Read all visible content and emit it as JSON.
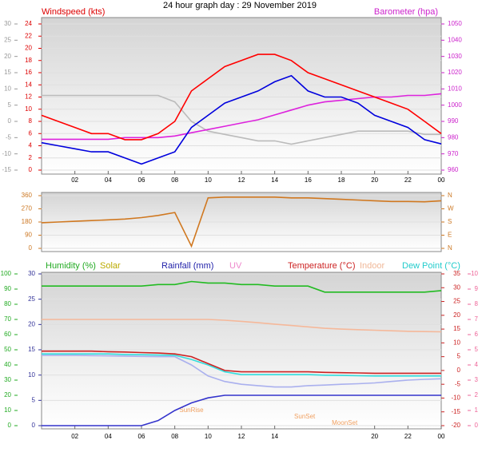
{
  "chart_data": [
    {
      "type": "line",
      "title": "24 hour graph day : 29 November 2019",
      "ylabel": "Windspeed (kts)",
      "y2label": "Barometer (hpa)",
      "x": [
        0,
        1,
        2,
        3,
        4,
        5,
        6,
        7,
        8,
        9,
        10,
        11,
        12,
        13,
        14,
        15,
        16,
        17,
        18,
        19,
        20,
        21,
        22,
        23,
        24
      ],
      "xlim": [
        0,
        24
      ],
      "xticks": [
        {
          "value": 2,
          "label": "02"
        },
        {
          "value": 4,
          "label": "04"
        },
        {
          "value": 6,
          "label": "06"
        },
        {
          "value": 8,
          "label": "08"
        },
        10,
        12,
        14,
        16,
        18,
        20,
        22,
        {
          "value": 24,
          "label": "00"
        }
      ],
      "ylim": [
        0,
        24
      ],
      "yticks": [
        0,
        2,
        4,
        6,
        8,
        10,
        12,
        14,
        16,
        18,
        20,
        22,
        24
      ],
      "ycolor": "#dd0000",
      "y2lim": [
        960,
        1050
      ],
      "y2ticks": [
        960,
        970,
        980,
        990,
        1000,
        1010,
        1020,
        1030,
        1040,
        1050
      ],
      "y2color": "#cc22cc",
      "y3lim": [
        -15,
        30
      ],
      "y3ticks": [
        -15,
        -10,
        -5,
        0,
        5,
        10,
        15,
        20,
        25,
        30
      ],
      "y3color": "#999999",
      "grid": true,
      "series": [
        {
          "color": "#bbbbbb",
          "axis": "y3",
          "values": [
            8,
            8,
            8,
            8,
            8,
            8,
            8,
            8,
            6,
            0,
            -3,
            -4,
            -5,
            -6,
            -6,
            -7,
            -6,
            -5,
            -4,
            -3,
            -3,
            -3,
            -3,
            -4,
            -4
          ]
        },
        {
          "color": "#dd22dd",
          "axis": "y2",
          "values": [
            979,
            979,
            979,
            979,
            979,
            980,
            980,
            980,
            981,
            983,
            985,
            987,
            989,
            991,
            994,
            997,
            1000,
            1002,
            1003,
            1004,
            1005,
            1005,
            1006,
            1006,
            1007
          ]
        },
        {
          "color": "#ff0000",
          "axis": "y",
          "values": [
            9,
            8,
            7,
            6,
            6,
            5,
            5,
            6,
            8,
            13,
            15,
            17,
            18,
            19,
            19,
            18,
            16,
            15,
            14,
            13,
            12,
            11,
            10,
            8,
            6
          ]
        },
        {
          "color": "#0000dd",
          "axis": "y",
          "values": [
            4.5,
            4,
            3.5,
            3,
            3,
            2,
            1,
            2,
            3,
            7,
            9,
            11,
            12,
            13,
            14.5,
            15.5,
            13,
            12,
            12,
            11,
            9,
            8,
            7,
            5,
            4.3
          ]
        }
      ]
    },
    {
      "type": "line",
      "x": [
        0,
        1,
        2,
        3,
        4,
        5,
        6,
        7,
        8,
        9,
        10,
        11,
        12,
        13,
        14,
        15,
        16,
        17,
        18,
        19,
        20,
        21,
        22,
        23,
        24
      ],
      "xlim": [
        0,
        24
      ],
      "ylim": [
        0,
        360
      ],
      "yticks": [
        0,
        90,
        180,
        270,
        360
      ],
      "ycolor": "#cc7722",
      "y2lim": [
        0,
        360
      ],
      "y2ticks": [
        {
          "value": 0,
          "label": "N"
        },
        {
          "value": 90,
          "label": "E"
        },
        {
          "value": 180,
          "label": "S"
        },
        {
          "value": 270,
          "label": "W"
        },
        {
          "value": 360,
          "label": "N"
        }
      ],
      "y2color": "#cc7722",
      "grid": true,
      "series": [
        {
          "color": "#d07820",
          "axis": "y",
          "values": [
            175,
            180,
            185,
            190,
            195,
            200,
            210,
            225,
            245,
            15,
            345,
            350,
            350,
            350,
            350,
            345,
            345,
            340,
            335,
            330,
            325,
            320,
            320,
            318,
            325
          ]
        }
      ]
    },
    {
      "type": "line",
      "x": [
        0,
        1,
        2,
        3,
        4,
        5,
        6,
        7,
        8,
        9,
        10,
        11,
        12,
        13,
        14,
        15,
        16,
        17,
        18,
        19,
        20,
        21,
        22,
        23,
        24
      ],
      "xlim": [
        0,
        24
      ],
      "xticks": [
        {
          "value": 2,
          "label": "02"
        },
        {
          "value": 4,
          "label": "04"
        },
        {
          "value": 6,
          "label": "06"
        },
        {
          "value": 8,
          "label": "08"
        },
        10,
        12,
        14,
        20,
        22,
        {
          "value": 24,
          "label": "00"
        }
      ],
      "ylim": [
        0,
        30
      ],
      "yticks": [
        0,
        5,
        10,
        15,
        20,
        25,
        30
      ],
      "ycolor": "#333399",
      "y2lim": [
        -20,
        35
      ],
      "y2ticks": [
        -20,
        -15,
        -10,
        -5,
        0,
        5,
        10,
        15,
        20,
        25,
        30,
        35
      ],
      "y2color": "#cc2222",
      "y3lim": [
        0,
        100
      ],
      "y3ticks": [
        0,
        10,
        20,
        30,
        40,
        50,
        60,
        70,
        80,
        90,
        100
      ],
      "y3color": "#22aa22",
      "y4lim": [
        0,
        10
      ],
      "y4ticks": [
        0,
        1,
        2,
        3,
        4,
        5,
        6,
        7,
        8,
        9,
        10
      ],
      "y4color": "#ee6699",
      "grid": true,
      "legend": [
        {
          "text": "Humidity (%)",
          "color": "#22aa22"
        },
        {
          "text": "Solar",
          "color": "#bbaa00"
        },
        {
          "text": "Rainfall (mm)",
          "color": "#2222aa"
        },
        {
          "text": "UV",
          "color": "#ee88cc"
        },
        {
          "text": "Temperature (°C)",
          "color": "#cc2222"
        },
        {
          "text": "Indoor",
          "color": "#f0b898"
        },
        {
          "text": "Dew Point (°C)",
          "color": "#22cccc"
        }
      ],
      "annotations": [
        {
          "text": "SunRise",
          "x": 9
        },
        {
          "text": "SunSet",
          "x": 15.8
        },
        {
          "text": "MoonSet",
          "x": 18.2
        }
      ],
      "series": [
        {
          "color": "#f5b89a",
          "axis": "y2",
          "values": [
            18.5,
            18.5,
            18.5,
            18.5,
            18.5,
            18.5,
            18.5,
            18.5,
            18.5,
            18.5,
            18.5,
            18.2,
            17.8,
            17.3,
            16.8,
            16.3,
            15.8,
            15.3,
            15,
            14.8,
            14.6,
            14.4,
            14.2,
            14.1,
            14
          ]
        },
        {
          "color": "#aab0ee",
          "axis": "y2",
          "values": [
            5.5,
            5.5,
            5.5,
            5.4,
            5.3,
            5.2,
            5.1,
            5,
            5,
            2,
            -2,
            -4,
            -5,
            -5.5,
            -6,
            -6,
            -5.5,
            -5.3,
            -5,
            -4.8,
            -4.5,
            -4,
            -3.5,
            -3.2,
            -3
          ]
        },
        {
          "color": "#33dddd",
          "axis": "y2",
          "values": [
            6,
            6,
            6,
            6,
            6,
            5.8,
            5.7,
            5.6,
            5.5,
            4,
            2,
            -0.5,
            -1.5,
            -1.5,
            -1.5,
            -1.5,
            -1.5,
            -1.7,
            -1.8,
            -1.9,
            -2,
            -2,
            -2,
            -2,
            -2
          ]
        },
        {
          "color": "#cc2222",
          "axis": "y2",
          "values": [
            7,
            7,
            7,
            7,
            6.8,
            6.7,
            6.5,
            6.3,
            6,
            5,
            2.5,
            0,
            -0.5,
            -0.5,
            -0.5,
            -0.5,
            -0.5,
            -0.7,
            -0.8,
            -0.9,
            -1,
            -1,
            -1,
            -1,
            -1
          ]
        },
        {
          "color": "#22bb22",
          "axis": "y3",
          "values": [
            92,
            92,
            92,
            92,
            92,
            92,
            92,
            93,
            93,
            95,
            94,
            94,
            93,
            93,
            92,
            92,
            92,
            88,
            88,
            88,
            88,
            88,
            88,
            88,
            89
          ]
        },
        {
          "color": "#3333cc",
          "axis": "y",
          "values": [
            0,
            0,
            0,
            0,
            0,
            0,
            0,
            1,
            3,
            4.5,
            5.5,
            6,
            6,
            6,
            6,
            6,
            6,
            6,
            6,
            6,
            6,
            6,
            6,
            6,
            6
          ]
        }
      ]
    }
  ]
}
